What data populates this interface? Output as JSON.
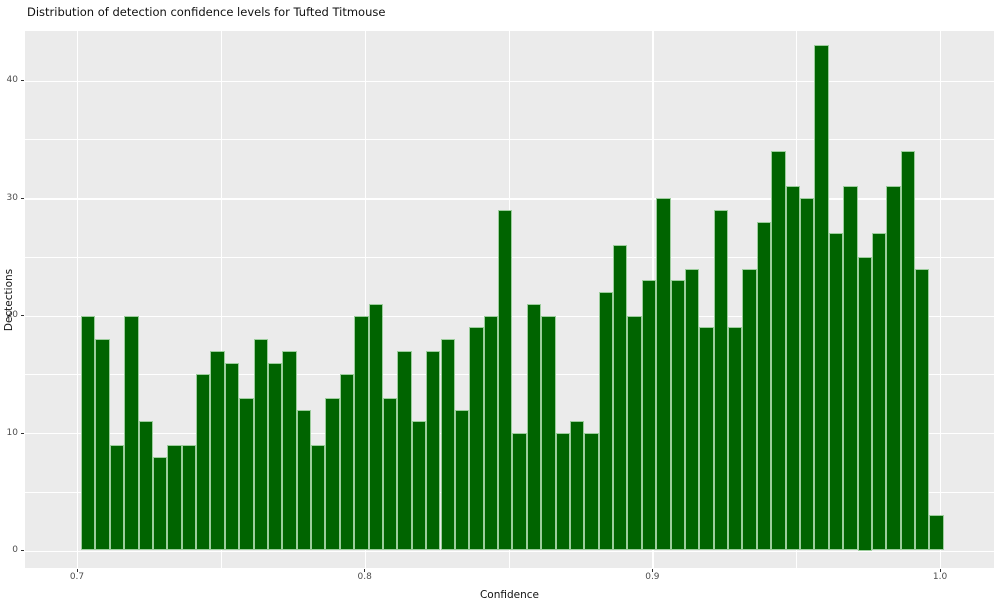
{
  "title": "Distribution of detection confidence levels for Tufted Titmouse",
  "chart_data": {
    "type": "bar",
    "subtype": "histogram",
    "title": "Distribution of detection confidence levels for Tufted Titmouse",
    "xlabel": "Confidence",
    "ylabel": "Dectections",
    "bin_width": 0.005,
    "x_first_bin_left": 0.7015,
    "values": [
      20,
      18,
      9,
      20,
      11,
      8,
      9,
      9,
      15,
      17,
      16,
      13,
      18,
      16,
      17,
      12,
      9,
      13,
      15,
      20,
      21,
      13,
      17,
      11,
      17,
      18,
      12,
      19,
      20,
      29,
      10,
      21,
      20,
      10,
      11,
      10,
      22,
      26,
      20,
      23,
      30,
      23,
      24,
      19,
      29,
      19,
      24,
      28,
      34,
      31,
      30,
      43,
      27,
      31,
      25,
      27,
      31,
      34,
      24,
      3
    ],
    "x_ticks": [
      0.7,
      0.8,
      0.9,
      1.0
    ],
    "x_tick_labels": [
      "0.7",
      "0.8",
      "0.9",
      "1.0"
    ],
    "x_minor_ticks": [
      0.75,
      0.85,
      0.95
    ],
    "y_ticks": [
      0,
      10,
      20,
      30,
      40
    ],
    "y_tick_labels": [
      "0",
      "10",
      "20",
      "30",
      "40"
    ],
    "y_minor_ticks": [
      5,
      15,
      25,
      35
    ],
    "xlim": [
      0.682,
      1.019
    ],
    "ylim": [
      -1.5,
      44.2
    ],
    "y_max_value": 43,
    "grid": "on",
    "legend_position": "none",
    "colors": {
      "bar_fill": "#006400",
      "bar_stroke": "#9ccd9c",
      "panel_background": "#EBEBEB",
      "gridline": "#FFFFFF",
      "tick_label": "#4D4D4D",
      "tick_mark": "#333333",
      "text": "#111111",
      "page_background": "#FFFFFF"
    }
  }
}
